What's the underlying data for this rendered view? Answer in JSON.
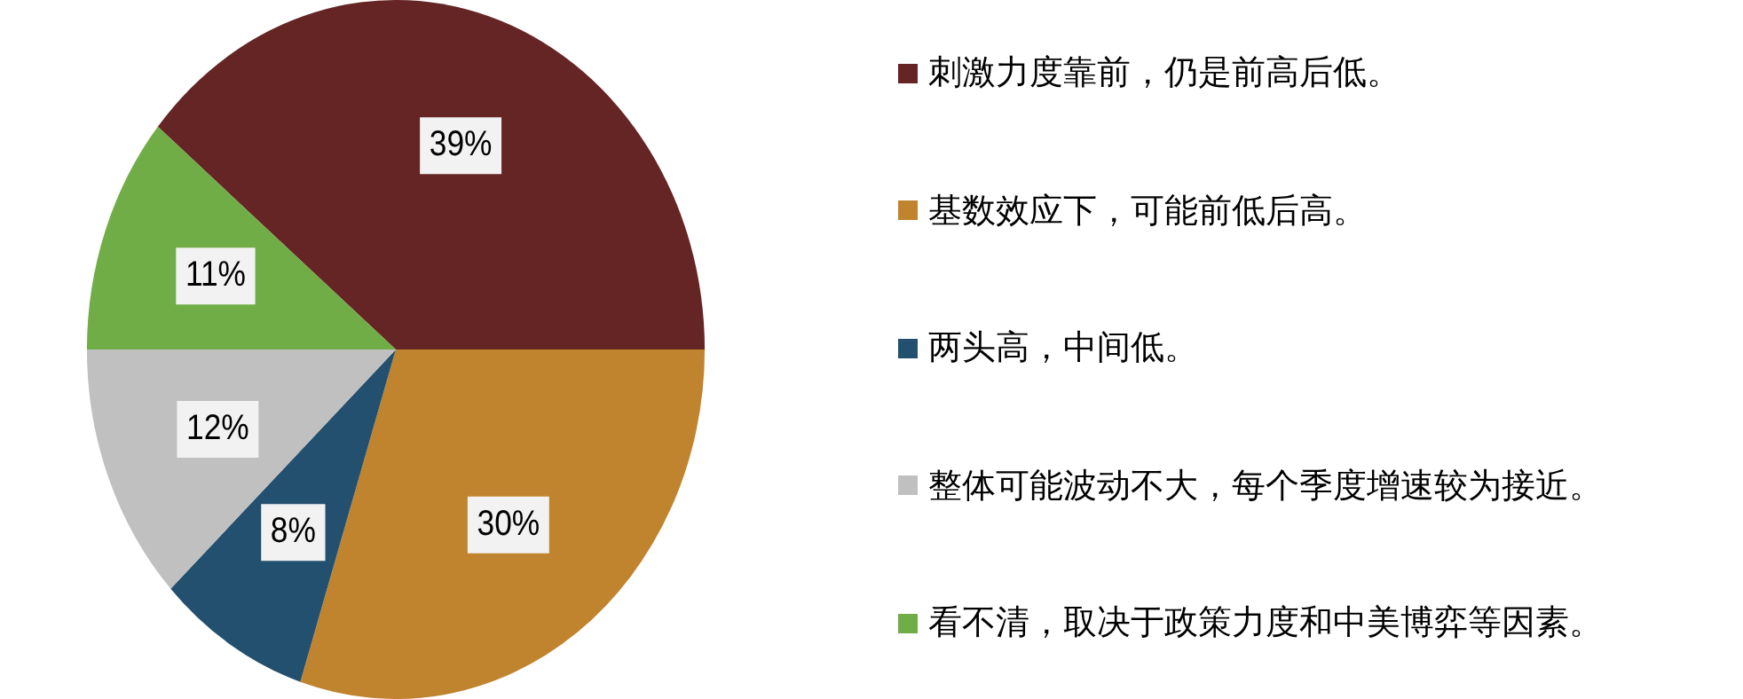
{
  "chart_data": {
    "type": "pie",
    "categories": [
      "刺激力度靠前，仍是前高后低。",
      "基数效应下，可能前低后高。",
      "两头高，中间低。",
      "整体可能波动不大，每个季度增速较为接近。",
      "看不清，取决于政策力度和中美博弈等因素。"
    ],
    "values": [
      39,
      30,
      8,
      12,
      11
    ],
    "colors": [
      "#662525",
      "#c0842f",
      "#24506f",
      "#c0c0c0",
      "#70ad47"
    ],
    "value_labels": [
      "39%",
      "30%",
      "8%",
      "12%",
      "11%"
    ],
    "legend": "right"
  }
}
